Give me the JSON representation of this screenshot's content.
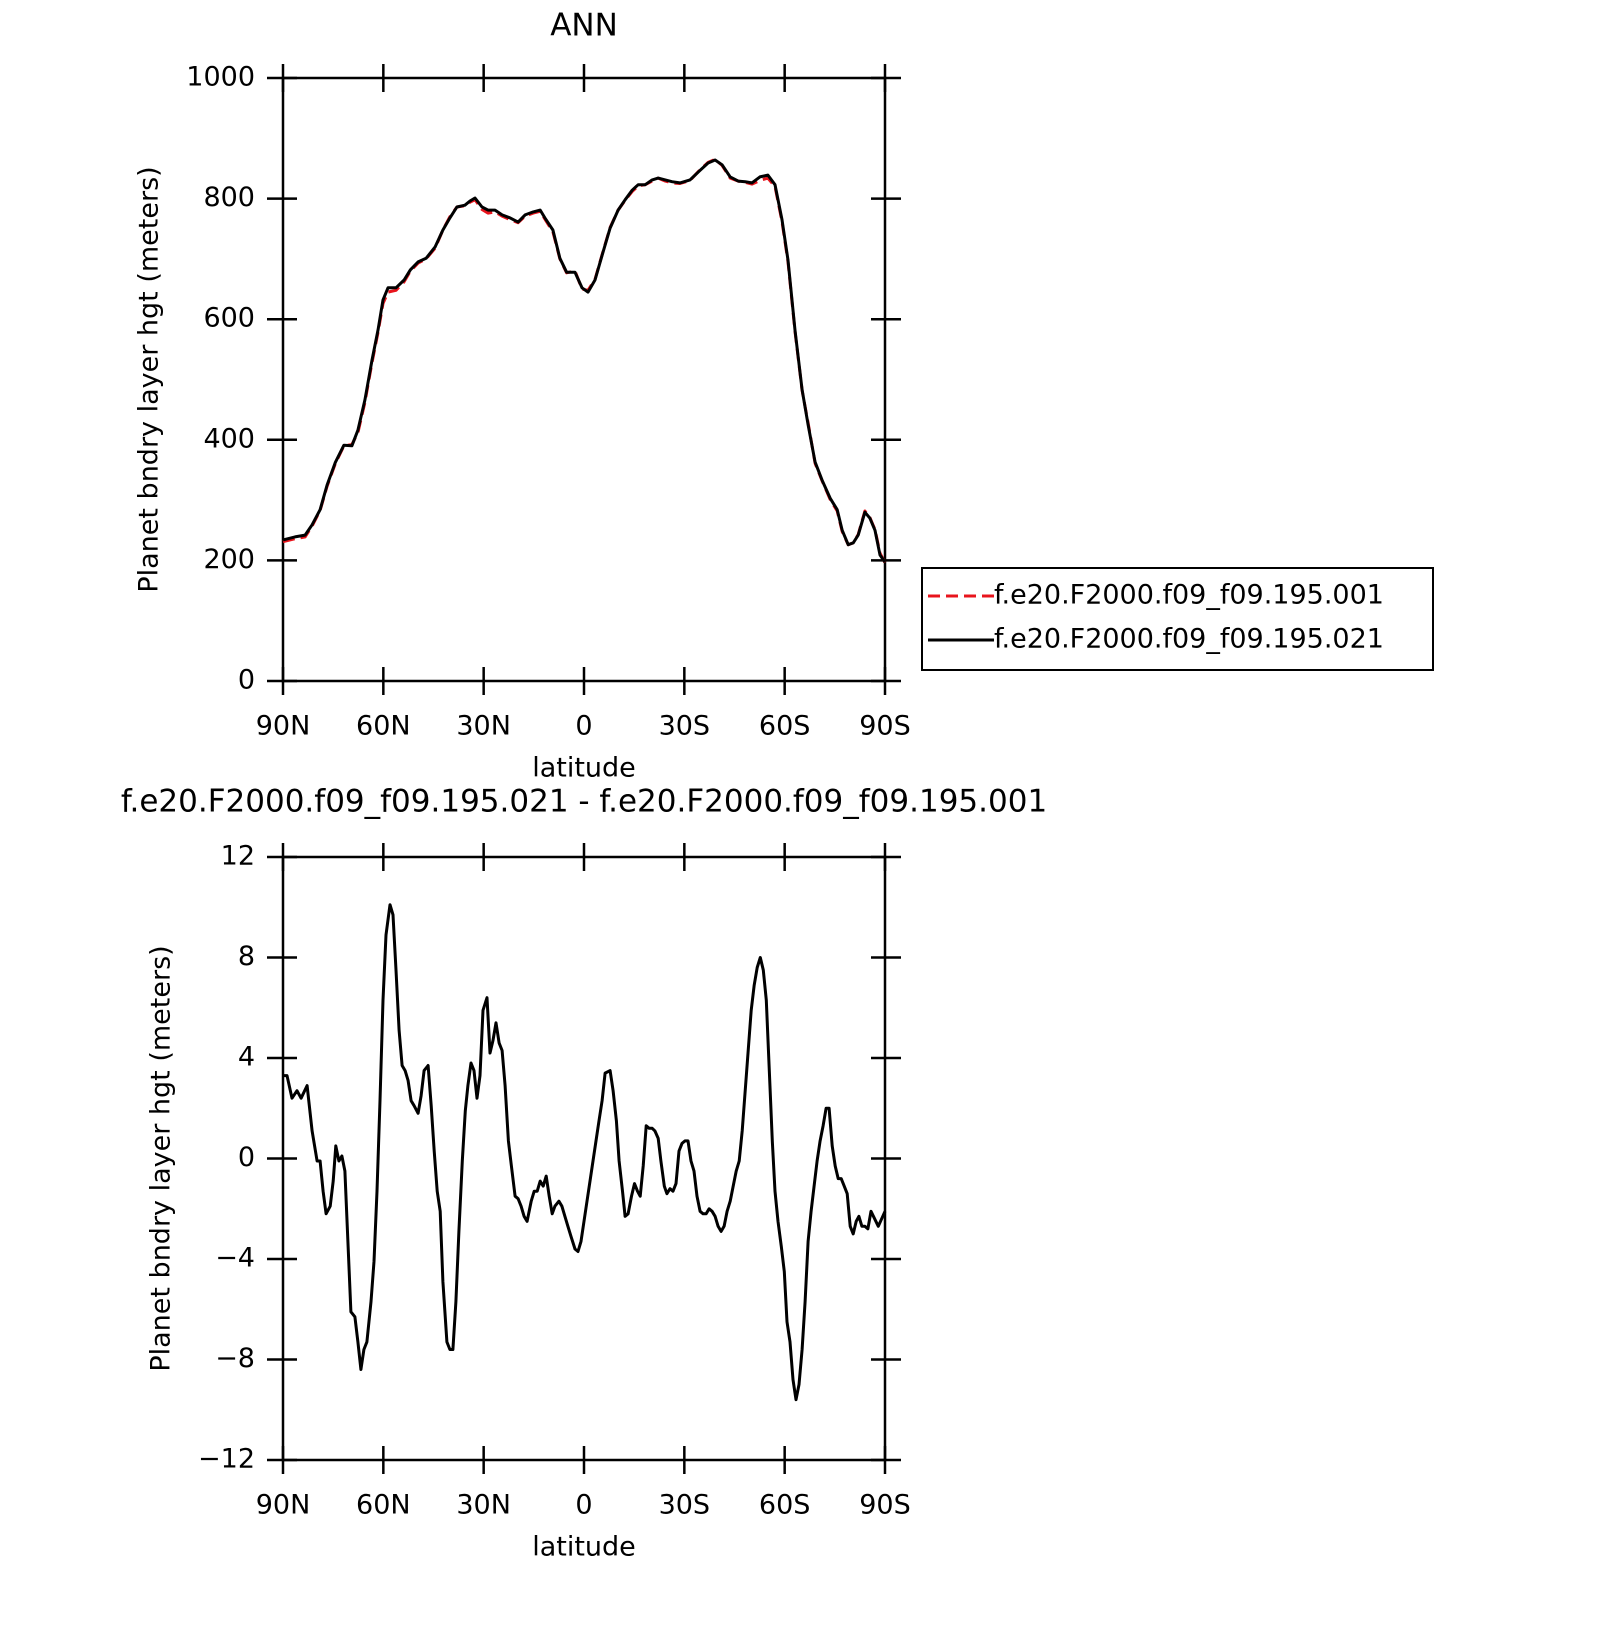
{
  "chart_data": [
    {
      "type": "line",
      "title": "ANN",
      "xlabel": "latitude",
      "ylabel": "Planet bndry layer hgt (meters)",
      "xlim": [
        90,
        -90
      ],
      "ylim": [
        0,
        1000
      ],
      "xticks": [
        {
          "value": 90,
          "label": "90N"
        },
        {
          "value": 60,
          "label": "60N"
        },
        {
          "value": 30,
          "label": "30N"
        },
        0,
        {
          "value": -30,
          "label": "30S"
        },
        {
          "value": -60,
          "label": "60S"
        },
        {
          "value": -90,
          "label": "90S"
        }
      ],
      "yticks": [
        0,
        200,
        400,
        600,
        800,
        1000
      ],
      "legend": "right",
      "x": [
        90,
        86.4,
        83.4,
        81.3,
        78.9,
        76.8,
        74.4,
        71.8,
        69.4,
        67.6,
        65.5,
        63.4,
        61.6,
        60.1,
        58.6,
        56.2,
        53.8,
        51.9,
        49.6,
        47.2,
        44.5,
        42.2,
        40.1,
        38,
        35.6,
        34.1,
        32.6,
        30.5,
        28.7,
        26.6,
        24.5,
        22.1,
        19.7,
        17.6,
        15.2,
        13.1,
        11.7,
        9.3,
        7.2,
        5.2,
        2.7,
        0.6,
        -1.2,
        -3.3,
        -5.4,
        -7.8,
        -10.2,
        -12.3,
        -14.4,
        -16.2,
        -18.3,
        -20.4,
        -22.2,
        -24.3,
        -26.3,
        -28.7,
        -31.7,
        -34.7,
        -37.1,
        -39.2,
        -41.3,
        -43.7,
        -46.1,
        -48.2,
        -50.2,
        -52.6,
        -55,
        -57.1,
        -59.2,
        -61,
        -63.1,
        -65.2,
        -67,
        -69.1,
        -71.2,
        -73.6,
        -75.7,
        -77.2,
        -79,
        -80.5,
        -82,
        -84,
        -85.5,
        -87,
        -88.5,
        -90
      ],
      "series": [
        {
          "name": "f.e20.F2000.f09_f09.195.001",
          "color": "#e8141c",
          "line_style": "dashed",
          "values": [
            231,
            236,
            239,
            257,
            283,
            323,
            360,
            390,
            392,
            412,
            462,
            528,
            578,
            626,
            645,
            648,
            662,
            680,
            693,
            700,
            718,
            748,
            770,
            786,
            788,
            794,
            798,
            782,
            776,
            778,
            771,
            765,
            760,
            771,
            776,
            779,
            766,
            745,
            700,
            677,
            680,
            650,
            648,
            666,
            707,
            752,
            781,
            797,
            812,
            821,
            823,
            829,
            834,
            829,
            826,
            825,
            830,
            848,
            860,
            865,
            855,
            834,
            829,
            827,
            824,
            830,
            834,
            820,
            762,
            695,
            580,
            482,
            428,
            361,
            332,
            301,
            282,
            248,
            226,
            229,
            243,
            282,
            271,
            251,
            212,
            196
          ]
        },
        {
          "name": "f.e20.F2000.f09_f09.195.021",
          "color": "#000000",
          "line_style": "solid",
          "values": [
            234,
            239,
            242,
            259,
            284,
            325,
            362,
            391,
            390,
            416,
            466,
            532,
            582,
            632,
            652,
            652,
            665,
            682,
            695,
            701,
            720,
            748,
            768,
            786,
            789,
            796,
            801,
            786,
            781,
            781,
            773,
            768,
            761,
            773,
            778,
            781,
            768,
            748,
            701,
            678,
            678,
            652,
            645,
            665,
            706,
            751,
            781,
            798,
            814,
            823,
            823,
            831,
            834,
            831,
            828,
            826,
            831,
            847,
            859,
            864,
            856,
            836,
            829,
            828,
            826,
            836,
            839,
            823,
            765,
            698,
            582,
            483,
            425,
            363,
            333,
            303,
            284,
            250,
            226,
            229,
            242,
            280,
            270,
            250,
            209,
            197
          ]
        }
      ]
    },
    {
      "type": "line",
      "title": "f.e20.F2000.f09_f09.195.021 - f.e20.F2000.f09_f09.195.001",
      "xlabel": "latitude",
      "ylabel": "Planet bndry layer hgt (meters)",
      "xlim": [
        90,
        -90
      ],
      "ylim": [
        -12,
        12
      ],
      "xticks": [
        {
          "value": 90,
          "label": "90N"
        },
        {
          "value": 60,
          "label": "60N"
        },
        {
          "value": 30,
          "label": "30N"
        },
        0,
        {
          "value": -30,
          "label": "30S"
        },
        {
          "value": -60,
          "label": "60S"
        },
        {
          "value": -90,
          "label": "90S"
        }
      ],
      "yticks": [
        {
          "value": -12,
          "label": "−12"
        },
        {
          "value": -8,
          "label": "−8"
        },
        {
          "value": -4,
          "label": "−4"
        },
        0,
        4,
        8,
        12
      ],
      "x": [
        90,
        88.8,
        87.3,
        85.8,
        84.6,
        82.8,
        81.3,
        79.8,
        78.9,
        78,
        77.1,
        75.9,
        75,
        74.2,
        73.3,
        72.4,
        71.5,
        70.6,
        69.7,
        68.5,
        67.6,
        66.7,
        65.8,
        64.9,
        63.7,
        62.8,
        61.9,
        61,
        60.1,
        59.2,
        58,
        57.1,
        56.2,
        55.3,
        54.4,
        53.5,
        52.6,
        51.7,
        50.8,
        49.6,
        48.7,
        47.8,
        46.6,
        45.7,
        44.8,
        43.9,
        43,
        42.2,
        41,
        40.1,
        39.2,
        38.3,
        37.4,
        36.4,
        35.5,
        34.7,
        33.8,
        32.9,
        32,
        31.1,
        30.2,
        29,
        28.1,
        27.2,
        26.3,
        25.4,
        24.5,
        23.6,
        22.6,
        21.7,
        20.6,
        19.7,
        18.8,
        17.9,
        17,
        15.8,
        14.9,
        14,
        13.1,
        12.2,
        11.3,
        10.4,
        9.5,
        8.7,
        7.5,
        6.6,
        5.7,
        4.8,
        3.9,
        2.7,
        1.8,
        0.9,
        0,
        -0.9,
        -1.8,
        -2.7,
        -3.6,
        -4.5,
        -5.4,
        -6.3,
        -7.8,
        -8.7,
        -9.7,
        -10.5,
        -11.5,
        -12.3,
        -13.2,
        -14.2,
        -15.1,
        -16,
        -16.8,
        -17.7,
        -18.6,
        -19.5,
        -20.4,
        -21.2,
        -22.2,
        -23,
        -24,
        -24.8,
        -25.7,
        -26.6,
        -27.5,
        -28.4,
        -29.3,
        -30.2,
        -31.1,
        -32,
        -32.9,
        -33.8,
        -34.7,
        -35.6,
        -36.5,
        -37.4,
        -38.3,
        -39.2,
        -40.1,
        -41,
        -41.9,
        -42.8,
        -43.7,
        -44.6,
        -45.5,
        -46.4,
        -47.3,
        -48.2,
        -49.1,
        -50,
        -50.9,
        -51.8,
        -52.7,
        -53.6,
        -54.5,
        -55.4,
        -56.3,
        -57.1,
        -58,
        -59,
        -59.9,
        -60.7,
        -61.6,
        -62.5,
        -63.4,
        -64.3,
        -65.2,
        -66.1,
        -67,
        -67.9,
        -68.8,
        -69.7,
        -70.6,
        -71.5,
        -72.4,
        -73.3,
        -74.2,
        -75.1,
        -76,
        -76.9,
        -77.8,
        -78.7,
        -79.6,
        -80.5,
        -81.4,
        -82.2,
        -83.1,
        -84,
        -84.9,
        -85.8,
        -88,
        -90
      ],
      "series": [
        {
          "color": "#000000",
          "line_style": "solid",
          "values": [
            3.3,
            3.3,
            2.4,
            2.7,
            2.4,
            2.9,
            1.1,
            -0.1,
            -0.1,
            -1.3,
            -2.2,
            -1.9,
            -0.9,
            0.5,
            -0.1,
            0.1,
            -0.5,
            -3.3,
            -6.1,
            -6.3,
            -7.3,
            -8.4,
            -7.6,
            -7.3,
            -5.7,
            -4.1,
            -1.3,
            2.3,
            6.3,
            8.9,
            10.1,
            9.7,
            7.5,
            5.1,
            3.7,
            3.5,
            3.1,
            2.3,
            2.1,
            1.8,
            2.5,
            3.5,
            3.7,
            2.1,
            0.3,
            -1.3,
            -2.1,
            -4.9,
            -7.3,
            -7.6,
            -7.6,
            -5.7,
            -2.9,
            -0.1,
            1.9,
            2.9,
            3.8,
            3.5,
            2.4,
            3.3,
            5.9,
            6.4,
            4.2,
            4.7,
            5.4,
            4.6,
            4.3,
            2.9,
            0.7,
            -0.3,
            -1.5,
            -1.6,
            -1.9,
            -2.3,
            -2.5,
            -1.7,
            -1.3,
            -1.3,
            -0.9,
            -1.1,
            -0.7,
            -1.5,
            -2.2,
            -1.9,
            -1.7,
            -1.9,
            -2.3,
            -2.7,
            -3.1,
            -3.6,
            -3.7,
            -3.3,
            -2.5,
            -1.7,
            -0.9,
            -0.1,
            0.7,
            1.5,
            2.3,
            3.4,
            3.5,
            2.7,
            1.5,
            -0.1,
            -1.3,
            -2.3,
            -2.2,
            -1.5,
            -1,
            -1.3,
            -1.5,
            -0.3,
            1.3,
            1.2,
            1.2,
            1.1,
            0.8,
            -0.1,
            -1.1,
            -1.4,
            -1.2,
            -1.3,
            -1,
            0.3,
            0.6,
            0.7,
            0.7,
            -0.1,
            -0.5,
            -1.5,
            -2.1,
            -2.2,
            -2.2,
            -2,
            -2.1,
            -2.3,
            -2.7,
            -2.9,
            -2.7,
            -2.1,
            -1.7,
            -1.1,
            -0.5,
            -0.1,
            1.1,
            2.7,
            4.3,
            5.9,
            6.9,
            7.6,
            8,
            7.5,
            6.3,
            3.5,
            0.7,
            -1.3,
            -2.5,
            -3.5,
            -4.5,
            -6.5,
            -7.3,
            -8.8,
            -9.6,
            -9,
            -7.6,
            -5.7,
            -3.3,
            -2.1,
            -1.1,
            -0.1,
            0.7,
            1.3,
            2,
            2,
            0.5,
            -0.3,
            -0.8,
            -0.8,
            -1.1,
            -1.4,
            -2.7,
            -3,
            -2.5,
            -2.3,
            -2.7,
            -2.7,
            -2.8,
            -2.1,
            -2.7,
            -2.1
          ]
        }
      ]
    }
  ]
}
